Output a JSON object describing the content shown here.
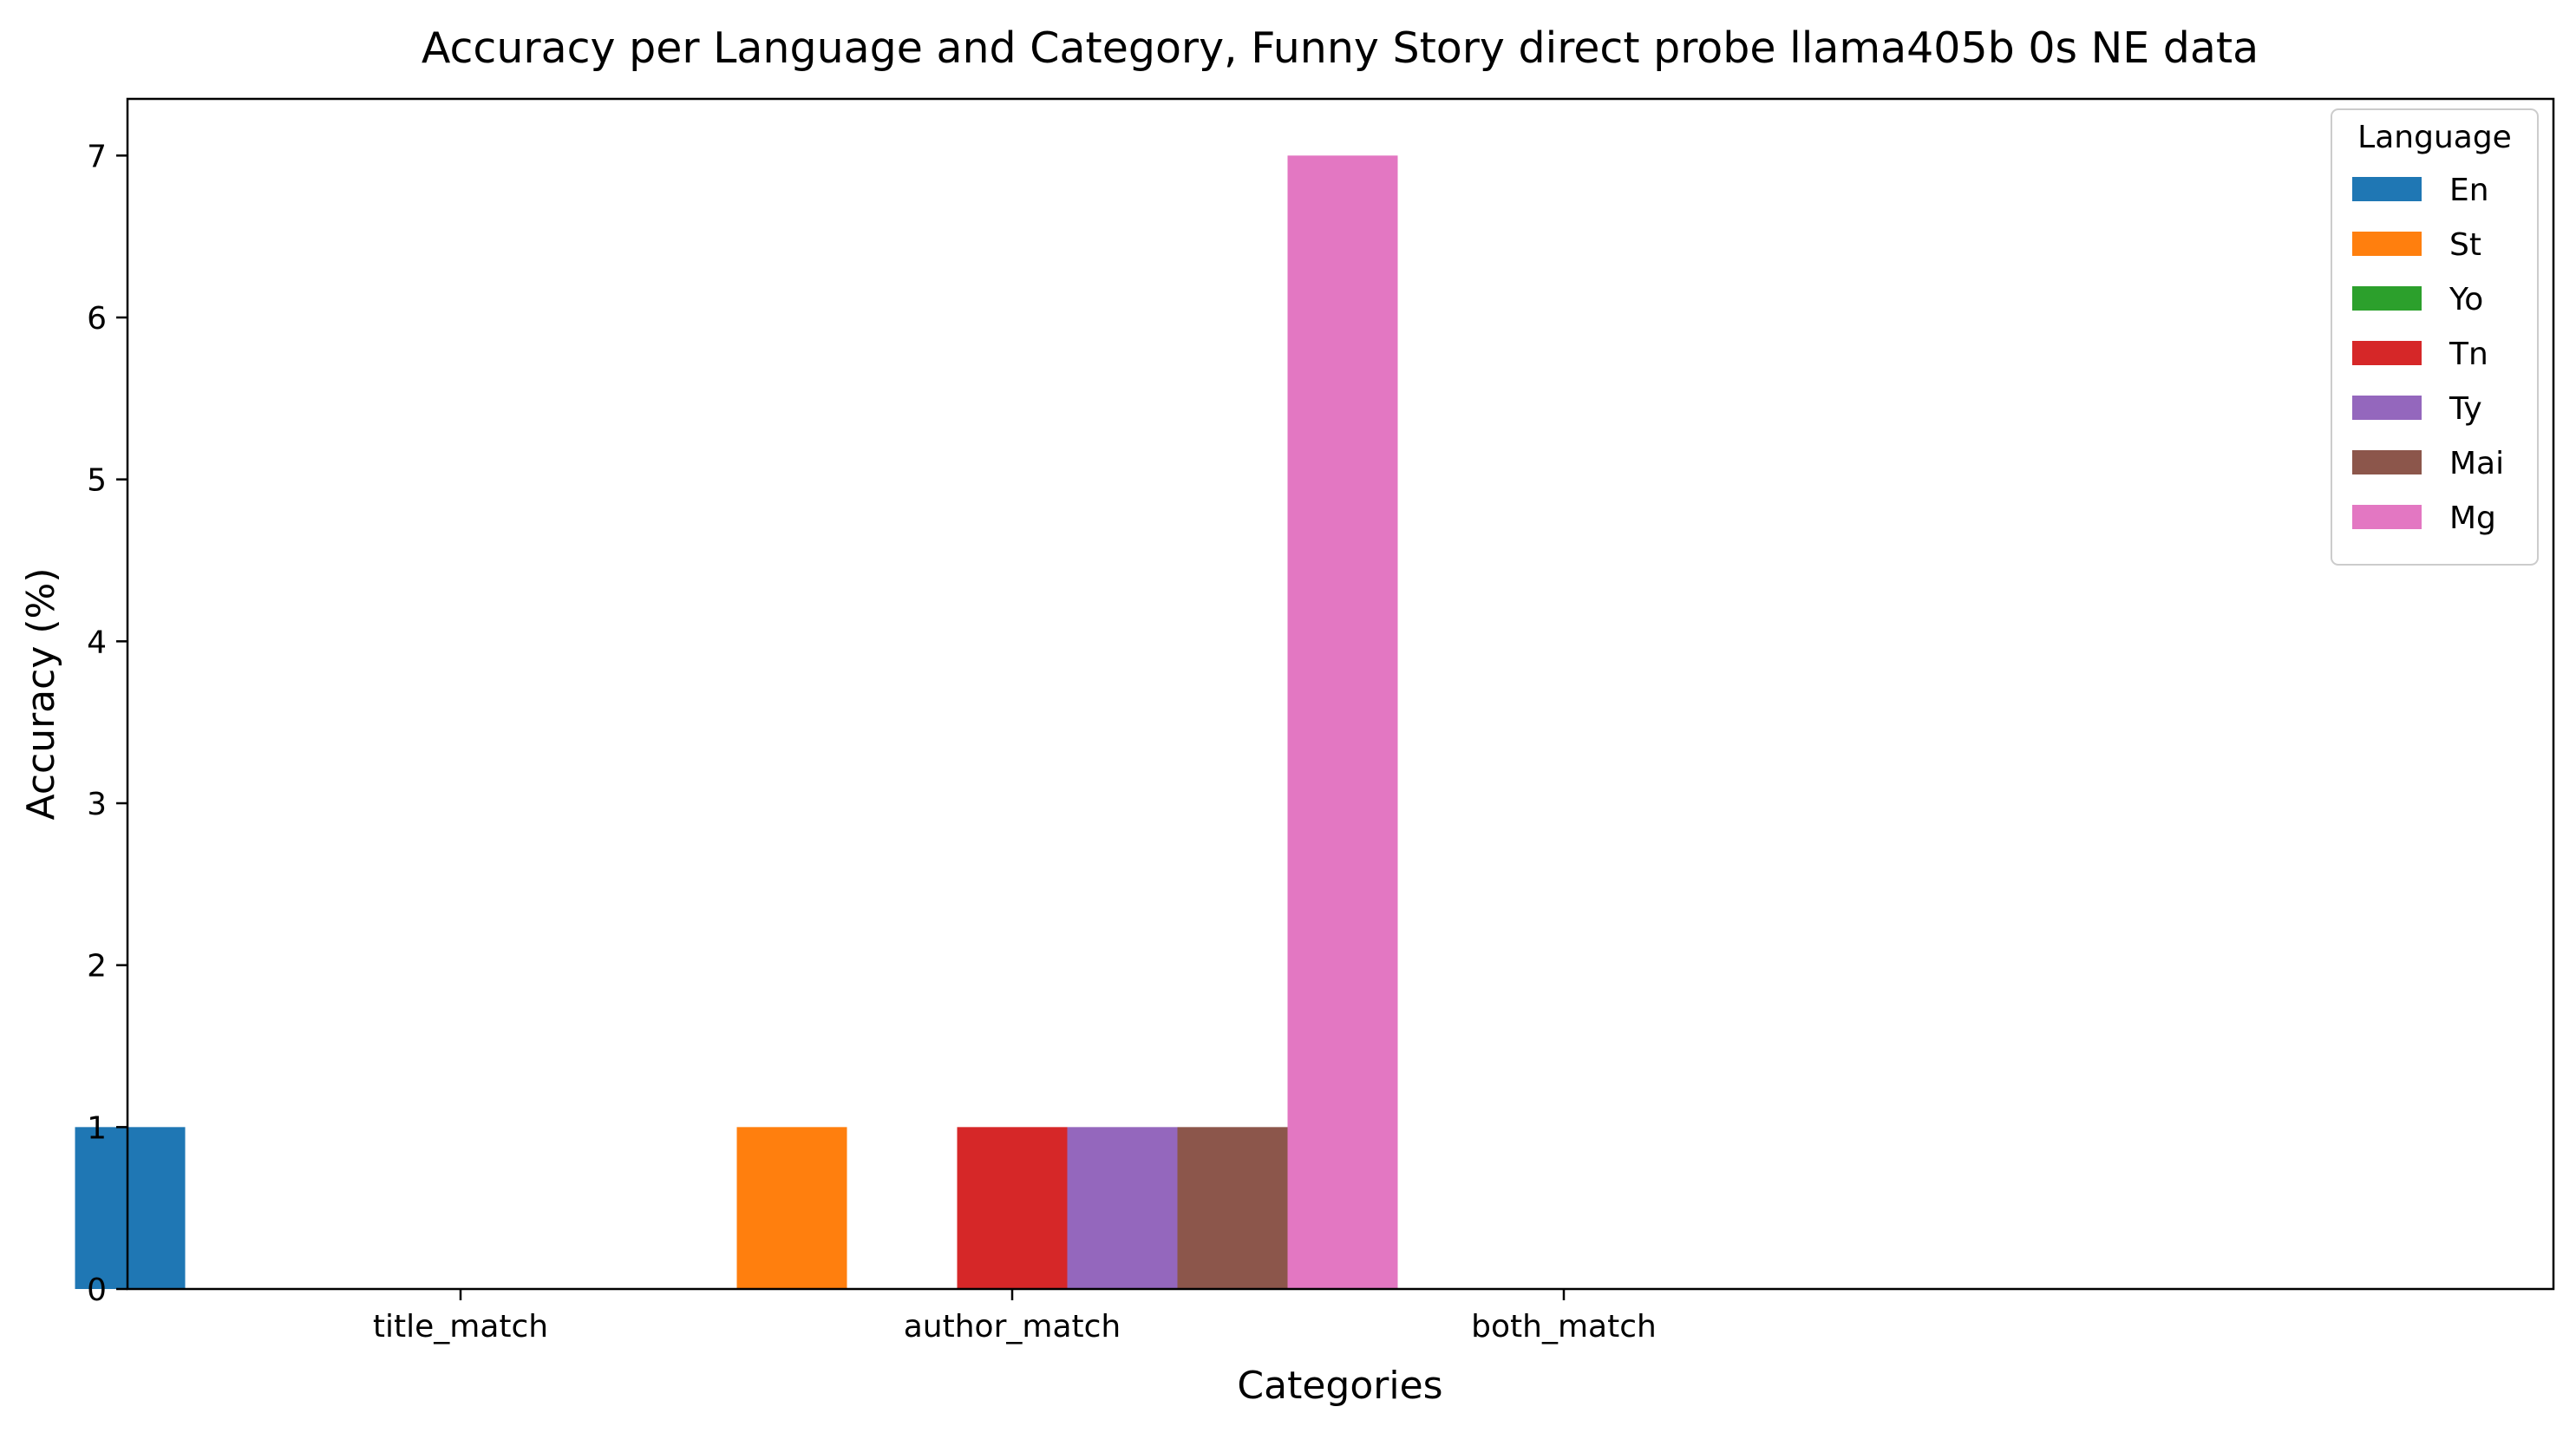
{
  "chart_data": {
    "type": "bar",
    "title": "Accuracy per Language and Category, Funny Story direct probe llama405b 0s NE data",
    "xlabel": "Categories",
    "ylabel": "Accuracy (%)",
    "categories": [
      "title_match",
      "author_match",
      "both_match"
    ],
    "ylim": [
      0,
      7.35
    ],
    "yticks": [
      0,
      1,
      2,
      3,
      4,
      5,
      6,
      7
    ],
    "grid": false,
    "legend": {
      "title": "Language",
      "placement": "top-right"
    },
    "series": [
      {
        "name": "En",
        "color": "#1f77b4",
        "values": [
          1,
          0,
          0
        ]
      },
      {
        "name": "St",
        "color": "#ff7f0e",
        "values": [
          0,
          1,
          0
        ]
      },
      {
        "name": "Yo",
        "color": "#2ca02c",
        "values": [
          0,
          0,
          0
        ]
      },
      {
        "name": "Tn",
        "color": "#d62728",
        "values": [
          0,
          1,
          0
        ]
      },
      {
        "name": "Ty",
        "color": "#9467bd",
        "values": [
          0,
          1,
          0
        ]
      },
      {
        "name": "Mai",
        "color": "#8c564b",
        "values": [
          0,
          1,
          0
        ]
      },
      {
        "name": "Mg",
        "color": "#e377c2",
        "values": [
          0,
          7,
          0
        ]
      }
    ]
  }
}
